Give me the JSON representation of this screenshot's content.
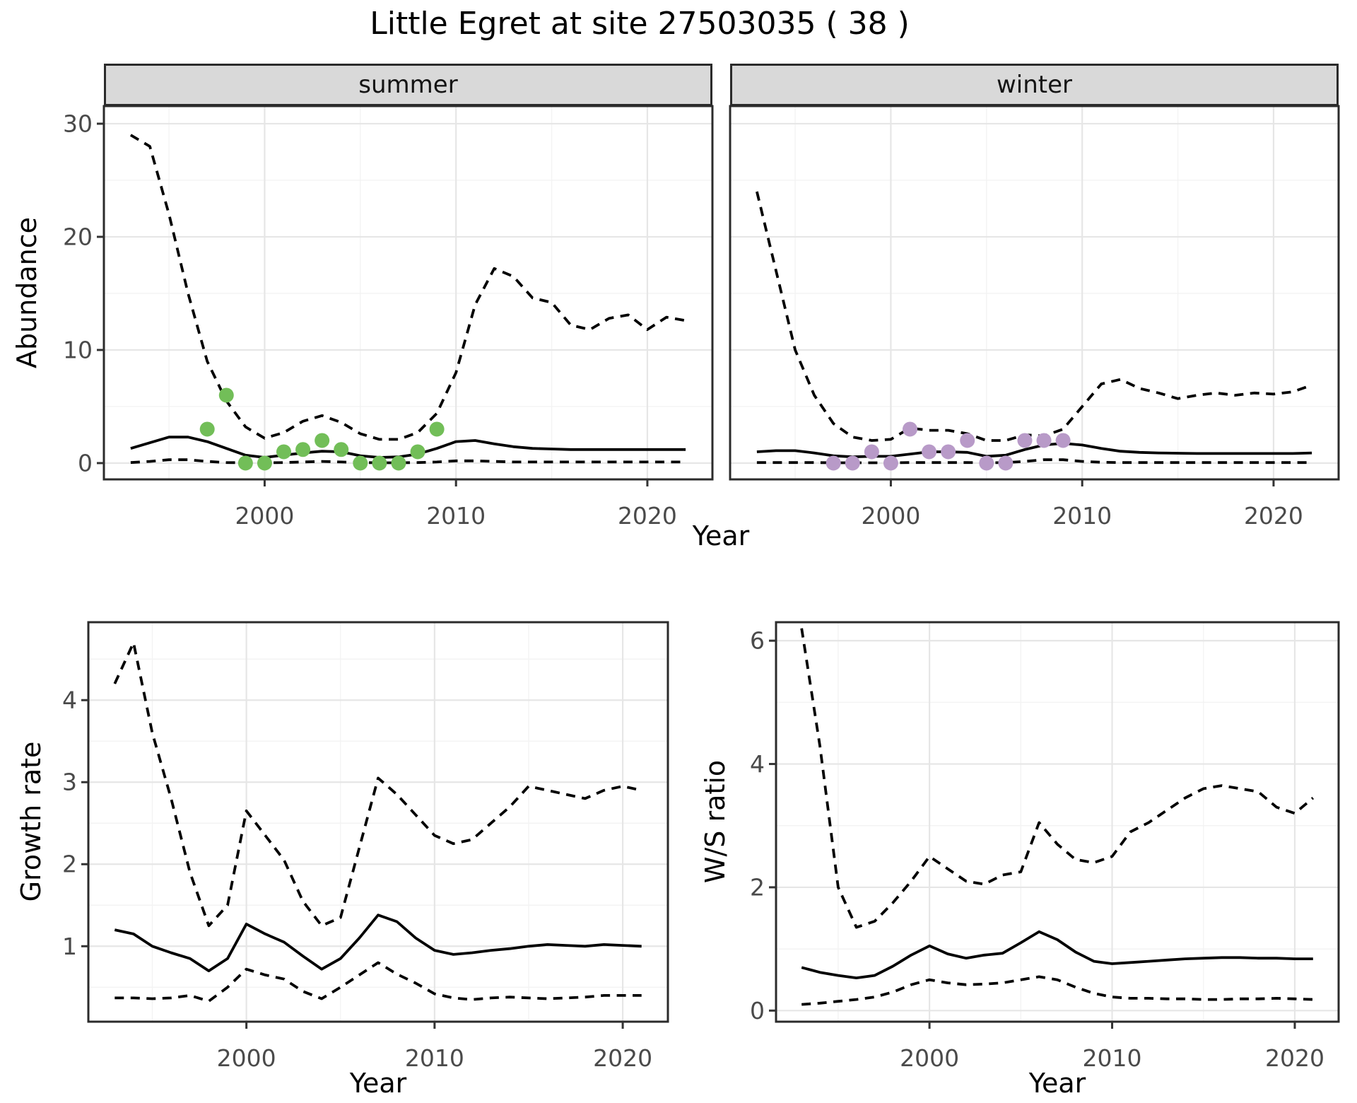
{
  "figure": {
    "title": "Little Egret at site 27503035 ( 38 )"
  },
  "colors": {
    "summer_point": "#72be58",
    "winter_point": "#b89ac8",
    "line": "#000000",
    "strip_bg": "#d9d9d9",
    "panel_bg": "#ffffff",
    "panel_border": "#2b2b2b",
    "grid_major": "#e6e6e6",
    "grid_minor": "#f3f3f3",
    "tick_label": "#4a4a4a"
  },
  "chart_data": [
    {
      "type": "line",
      "facet": "summer",
      "xlabel": "Year",
      "ylabel": "Abundance",
      "xticks": [
        2000,
        2010,
        2020
      ],
      "yticks": [
        0,
        10,
        20,
        30
      ],
      "xlim": [
        1991.6,
        2023.4
      ],
      "ylim": [
        -1.44,
        31.56
      ],
      "grid": true,
      "x": [
        1993,
        1994,
        1995,
        1996,
        1997,
        1998,
        1999,
        2000,
        2001,
        2002,
        2003,
        2004,
        2005,
        2006,
        2007,
        2008,
        2009,
        2010,
        2011,
        2012,
        2013,
        2014,
        2015,
        2016,
        2017,
        2018,
        2019,
        2020,
        2021,
        2022
      ],
      "series": [
        {
          "name": "upper_95ci",
          "style": "dashed",
          "values": [
            29,
            28,
            22,
            15,
            9,
            5.5,
            3.2,
            2.2,
            2.7,
            3.7,
            4.2,
            3.6,
            2.6,
            2.1,
            2.1,
            2.7,
            4.4,
            8,
            14,
            17.2,
            16.5,
            14.6,
            14.2,
            12.2,
            11.8,
            12.8,
            13.1,
            11.8,
            12.9,
            12.6
          ]
        },
        {
          "name": "median",
          "style": "solid",
          "values": [
            1.3,
            1.8,
            2.3,
            2.3,
            1.9,
            1.3,
            0.7,
            0.5,
            0.7,
            0.9,
            1.05,
            1.0,
            0.65,
            0.5,
            0.55,
            0.8,
            1.3,
            1.9,
            2.0,
            1.7,
            1.45,
            1.3,
            1.25,
            1.2,
            1.2,
            1.2,
            1.2,
            1.2,
            1.2,
            1.2
          ]
        },
        {
          "name": "lower_95ci",
          "style": "dashed",
          "values": [
            0.05,
            0.15,
            0.3,
            0.3,
            0.15,
            0.05,
            0.03,
            0.03,
            0.05,
            0.1,
            0.15,
            0.1,
            0.05,
            0.03,
            0.03,
            0.05,
            0.1,
            0.2,
            0.2,
            0.15,
            0.1,
            0.1,
            0.1,
            0.1,
            0.1,
            0.1,
            0.1,
            0.1,
            0.1,
            0.1
          ]
        }
      ],
      "points": {
        "name": "summer-observations",
        "color": "#72be58",
        "xy": [
          [
            1997,
            3
          ],
          [
            1998,
            6
          ],
          [
            1999,
            0
          ],
          [
            2000,
            0
          ],
          [
            2001,
            1
          ],
          [
            2002,
            1.2
          ],
          [
            2003,
            2
          ],
          [
            2004,
            1.2
          ],
          [
            2005,
            0
          ],
          [
            2006,
            0
          ],
          [
            2007,
            0
          ],
          [
            2008,
            1
          ],
          [
            2009,
            3
          ]
        ]
      }
    },
    {
      "type": "line",
      "facet": "winter",
      "xlabel": "Year",
      "ylabel": "Abundance",
      "xticks": [
        2000,
        2010,
        2020
      ],
      "yticks": [
        0,
        10,
        20,
        30
      ],
      "xlim": [
        1991.6,
        2023.4
      ],
      "ylim": [
        -1.44,
        31.56
      ],
      "grid": true,
      "x": [
        1993,
        1994,
        1995,
        1996,
        1997,
        1998,
        1999,
        2000,
        2001,
        2002,
        2003,
        2004,
        2005,
        2006,
        2007,
        2008,
        2009,
        2010,
        2011,
        2012,
        2013,
        2014,
        2015,
        2016,
        2017,
        2018,
        2019,
        2020,
        2021,
        2022
      ],
      "series": [
        {
          "name": "upper_95ci",
          "style": "dashed",
          "values": [
            24,
            17,
            10,
            6,
            3.5,
            2.3,
            2.0,
            2.1,
            3.1,
            2.9,
            2.9,
            2.6,
            2.0,
            2.0,
            2.5,
            2.4,
            3.0,
            5.0,
            7.0,
            7.4,
            6.6,
            6.2,
            5.7,
            6.0,
            6.2,
            6.0,
            6.2,
            6.1,
            6.3,
            6.9
          ]
        },
        {
          "name": "median",
          "style": "solid",
          "values": [
            1.0,
            1.1,
            1.1,
            0.9,
            0.65,
            0.55,
            0.6,
            0.6,
            0.8,
            1.0,
            1.0,
            0.95,
            0.6,
            0.7,
            1.2,
            1.6,
            1.75,
            1.6,
            1.3,
            1.05,
            0.95,
            0.9,
            0.87,
            0.85,
            0.85,
            0.85,
            0.85,
            0.85,
            0.85,
            0.9
          ]
        },
        {
          "name": "lower_95ci",
          "style": "dashed",
          "values": [
            0.05,
            0.05,
            0.05,
            0.05,
            0.03,
            0.03,
            0.03,
            0.03,
            0.05,
            0.05,
            0.05,
            0.05,
            0.03,
            0.05,
            0.15,
            0.3,
            0.3,
            0.15,
            0.07,
            0.05,
            0.05,
            0.05,
            0.05,
            0.05,
            0.05,
            0.05,
            0.05,
            0.05,
            0.05,
            0.05
          ]
        }
      ],
      "points": {
        "name": "winter-observations",
        "color": "#b89ac8",
        "xy": [
          [
            1997,
            0
          ],
          [
            1998,
            0
          ],
          [
            1999,
            1
          ],
          [
            2000,
            0
          ],
          [
            2001,
            3
          ],
          [
            2002,
            1
          ],
          [
            2003,
            1
          ],
          [
            2004,
            2
          ],
          [
            2005,
            0
          ],
          [
            2006,
            0
          ],
          [
            2007,
            2
          ],
          [
            2008,
            2
          ],
          [
            2009,
            2
          ]
        ]
      }
    },
    {
      "type": "line",
      "facet": "",
      "xlabel": "Year",
      "ylabel": "Growth rate",
      "xticks": [
        2000,
        2010,
        2020
      ],
      "yticks": [
        1,
        2,
        3,
        4
      ],
      "xlim": [
        1991.6,
        2022.4
      ],
      "ylim": [
        0.08,
        4.95
      ],
      "grid": true,
      "x": [
        1993,
        1994,
        1995,
        1996,
        1997,
        1998,
        1999,
        2000,
        2001,
        2002,
        2003,
        2004,
        2005,
        2006,
        2007,
        2008,
        2009,
        2010,
        2011,
        2012,
        2013,
        2014,
        2015,
        2016,
        2017,
        2018,
        2019,
        2020,
        2021
      ],
      "series": [
        {
          "name": "upper_95ci",
          "style": "dashed",
          "values": [
            4.2,
            4.7,
            3.6,
            2.8,
            1.9,
            1.25,
            1.5,
            2.65,
            2.35,
            2.05,
            1.55,
            1.25,
            1.35,
            2.2,
            3.05,
            2.85,
            2.6,
            2.35,
            2.25,
            2.3,
            2.5,
            2.7,
            2.95,
            2.9,
            2.85,
            2.8,
            2.9,
            2.95,
            2.9
          ]
        },
        {
          "name": "median",
          "style": "solid",
          "values": [
            1.2,
            1.15,
            1.0,
            0.92,
            0.85,
            0.7,
            0.85,
            1.27,
            1.15,
            1.05,
            0.88,
            0.72,
            0.85,
            1.1,
            1.38,
            1.3,
            1.1,
            0.95,
            0.9,
            0.92,
            0.95,
            0.97,
            1.0,
            1.02,
            1.01,
            1.0,
            1.02,
            1.01,
            1.0
          ]
        },
        {
          "name": "lower_95ci",
          "style": "dashed",
          "values": [
            0.37,
            0.37,
            0.36,
            0.37,
            0.4,
            0.33,
            0.5,
            0.72,
            0.65,
            0.6,
            0.45,
            0.36,
            0.5,
            0.65,
            0.8,
            0.66,
            0.55,
            0.42,
            0.37,
            0.35,
            0.37,
            0.38,
            0.37,
            0.36,
            0.37,
            0.38,
            0.4,
            0.4,
            0.4
          ]
        }
      ],
      "points": null
    },
    {
      "type": "line",
      "facet": "",
      "xlabel": "Year",
      "ylabel": "W/S ratio",
      "xticks": [
        2000,
        2010,
        2020
      ],
      "yticks": [
        0,
        2,
        4,
        6
      ],
      "xlim": [
        1991.6,
        2022.4
      ],
      "ylim": [
        -0.18,
        6.3
      ],
      "grid": true,
      "x": [
        1993,
        1994,
        1995,
        1996,
        1997,
        1998,
        1999,
        2000,
        2001,
        2002,
        2003,
        2004,
        2005,
        2006,
        2007,
        2008,
        2009,
        2010,
        2011,
        2012,
        2013,
        2014,
        2015,
        2016,
        2017,
        2018,
        2019,
        2020,
        2021
      ],
      "series": [
        {
          "name": "upper_95ci",
          "style": "dashed",
          "values": [
            6.2,
            4.3,
            2.0,
            1.35,
            1.45,
            1.75,
            2.1,
            2.5,
            2.3,
            2.1,
            2.05,
            2.2,
            2.25,
            3.05,
            2.7,
            2.45,
            2.4,
            2.5,
            2.9,
            3.05,
            3.25,
            3.45,
            3.6,
            3.65,
            3.6,
            3.55,
            3.3,
            3.2,
            3.45
          ]
        },
        {
          "name": "median",
          "style": "solid",
          "values": [
            0.7,
            0.62,
            0.57,
            0.53,
            0.57,
            0.72,
            0.9,
            1.05,
            0.92,
            0.85,
            0.9,
            0.93,
            1.1,
            1.28,
            1.15,
            0.95,
            0.8,
            0.76,
            0.78,
            0.8,
            0.82,
            0.84,
            0.85,
            0.86,
            0.86,
            0.85,
            0.85,
            0.84,
            0.84
          ]
        },
        {
          "name": "lower_95ci",
          "style": "dashed",
          "values": [
            0.1,
            0.12,
            0.15,
            0.18,
            0.22,
            0.3,
            0.42,
            0.5,
            0.45,
            0.42,
            0.43,
            0.45,
            0.5,
            0.55,
            0.5,
            0.38,
            0.28,
            0.22,
            0.2,
            0.2,
            0.19,
            0.19,
            0.18,
            0.18,
            0.19,
            0.19,
            0.2,
            0.19,
            0.18
          ]
        }
      ],
      "points": null
    }
  ]
}
